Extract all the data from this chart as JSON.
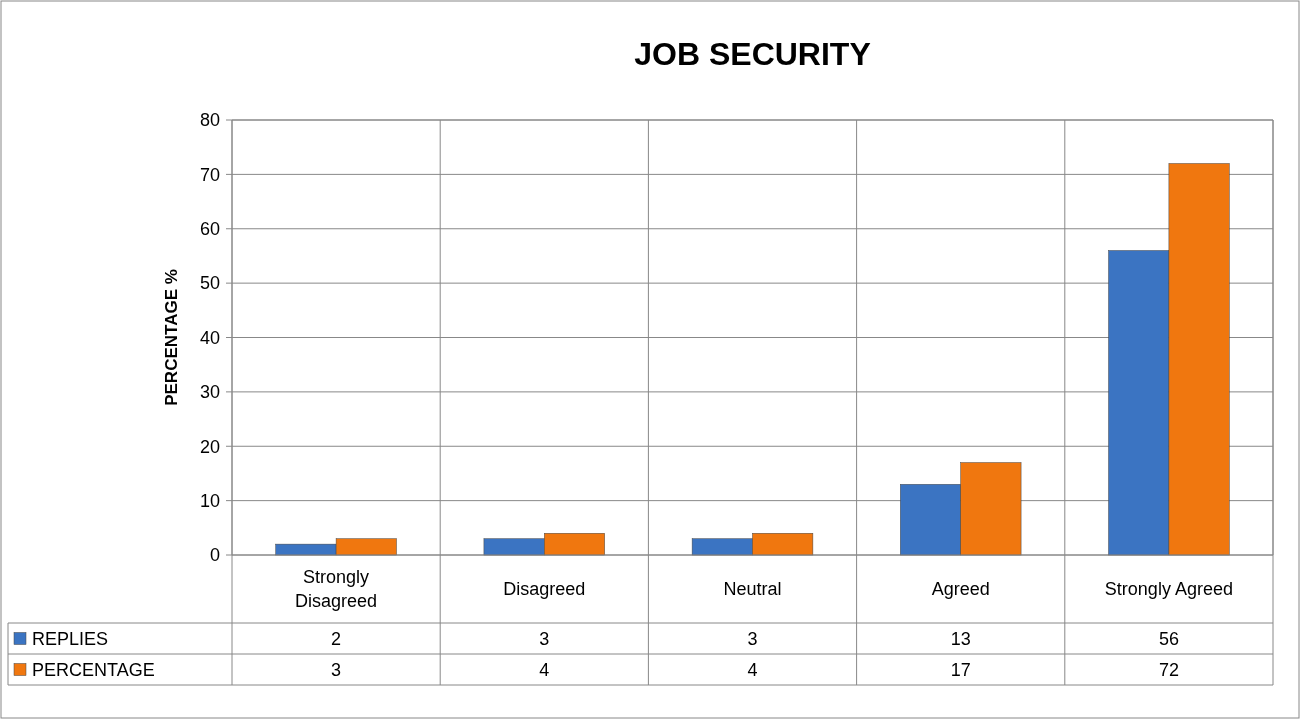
{
  "chart_data": {
    "type": "bar",
    "title": "JOB SECURITY",
    "ylabel": "PERCENTAGE %",
    "categories": [
      "Strongly Disagreed",
      "Disagreed",
      "Neutral",
      "Agreed",
      "Strongly Agreed"
    ],
    "series": [
      {
        "name": "REPLIES",
        "color": "#3b74c2",
        "values": [
          2,
          3,
          3,
          13,
          56
        ]
      },
      {
        "name": "PERCENTAGE",
        "color": "#f0770f",
        "values": [
          3,
          4,
          4,
          17,
          72
        ]
      }
    ],
    "ylim": [
      0,
      80
    ],
    "yticks": [
      0,
      10,
      20,
      30,
      40,
      50,
      60,
      70,
      80
    ],
    "grid": true,
    "legend": "bottom",
    "data_labels": true
  }
}
